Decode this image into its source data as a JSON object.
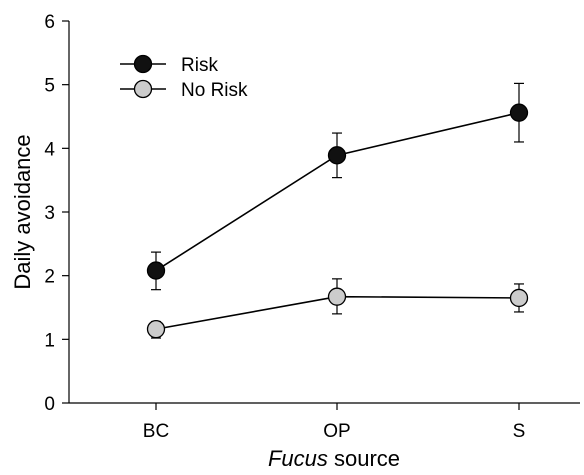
{
  "chart_data": {
    "type": "line",
    "categories": [
      "BC",
      "OP",
      "S"
    ],
    "xlabel_italic": "Fucus",
    "xlabel_rest": " source",
    "ylabel": "Daily avoidance",
    "ylim": [
      0,
      6
    ],
    "yticks": [
      "0",
      "1",
      "2",
      "3",
      "4",
      "5",
      "6"
    ],
    "legend_position": "top-left",
    "grid": false,
    "series": [
      {
        "name": "Risk",
        "color": "#111111",
        "values": [
          2.08,
          3.89,
          4.56
        ],
        "error": [
          [
            1.78,
            2.37
          ],
          [
            3.54,
            4.24
          ],
          [
            4.1,
            5.02
          ]
        ]
      },
      {
        "name": "No Risk",
        "color": "#cccccc",
        "values": [
          1.16,
          1.67,
          1.65
        ],
        "error": [
          [
            1.02,
            1.28
          ],
          [
            1.4,
            1.95
          ],
          [
            1.43,
            1.87
          ]
        ]
      }
    ]
  }
}
